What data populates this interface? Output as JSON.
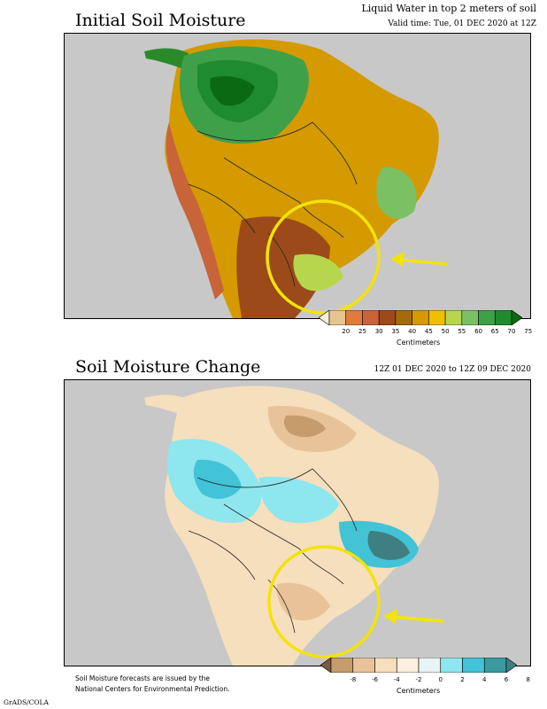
{
  "top_panel": {
    "title": "Initial Soil Moisture",
    "subtitle_line1": "Liquid Water in top 2 meters of soil",
    "subtitle_line2": "Valid time: Tue, 01 DEC 2020 at 12Z",
    "colorbar": {
      "unit": "Centimeters",
      "ticks": [
        "20",
        "25",
        "30",
        "35",
        "40",
        "45",
        "50",
        "55",
        "60",
        "65",
        "70",
        "75"
      ],
      "colors": [
        "#f5eedb",
        "#e6c58e",
        "#e07b3c",
        "#c8643a",
        "#9c4a1a",
        "#a66a0a",
        "#d49a00",
        "#f0c000",
        "#b6d64e",
        "#7cc064",
        "#3fa04a",
        "#1e8c2e",
        "#0a6a14"
      ]
    }
  },
  "bottom_panel": {
    "title": "Soil Moisture Change",
    "subtitle": "12Z 01 DEC 2020 to 12Z 09 DEC 2020",
    "colorbar": {
      "unit": "Centimeters",
      "ticks": [
        "-8",
        "-6",
        "-4",
        "-2",
        "0",
        "2",
        "4",
        "6",
        "8"
      ],
      "colors": [
        "#7a5a3a",
        "#c69c6d",
        "#e8c39a",
        "#f6dfbd",
        "#fbf0e0",
        "#e8f4f4",
        "#8ee6ee",
        "#42c3d6",
        "#3a9aa0",
        "#3f7f82"
      ]
    }
  },
  "footer": {
    "note_line1": "Soil Moisture forecasts are issued by the",
    "note_line2": "National Centers for Environmental Prediction.",
    "credit": "GrADS/COLA"
  },
  "colors": {
    "highlight": "#f2e30a",
    "ocean": "#c8c8c8"
  }
}
